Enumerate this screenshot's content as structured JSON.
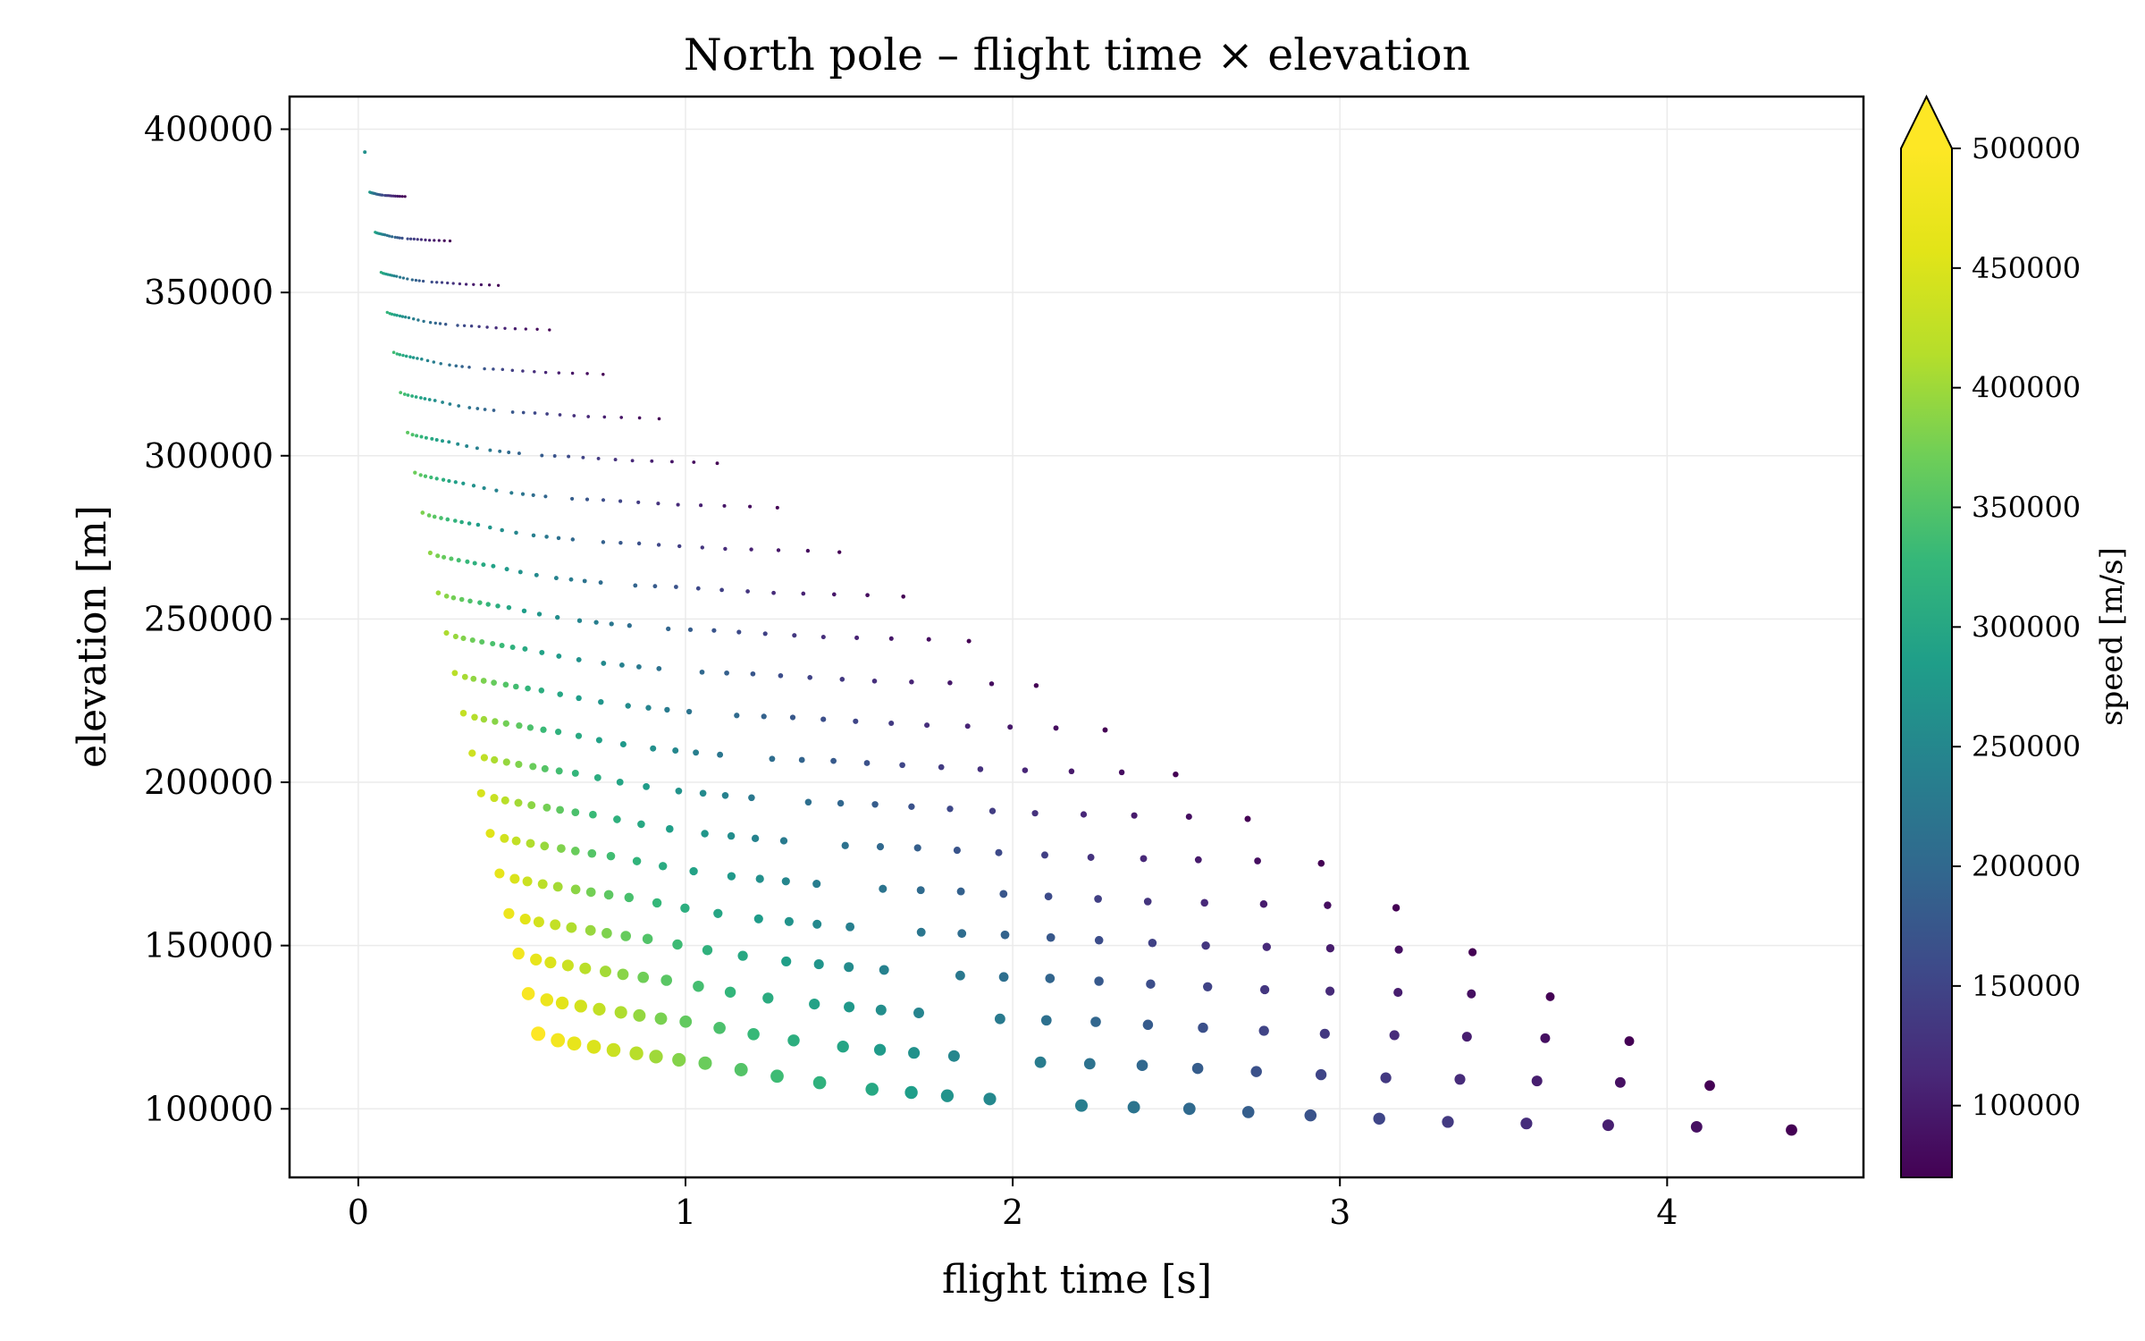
{
  "chart_data": {
    "type": "scatter",
    "title": "North pole – flight time × elevation",
    "xlabel": "flight time [s]",
    "ylabel": "elevation [m]",
    "xlim": [
      -0.21,
      4.6
    ],
    "ylim": [
      79000,
      410000
    ],
    "xticks": [
      0,
      1,
      2,
      3,
      4
    ],
    "yticks": [
      100000,
      150000,
      200000,
      250000,
      300000,
      350000,
      400000
    ],
    "x_tick_labels": [
      "0",
      "1",
      "2",
      "3",
      "4"
    ],
    "y_tick_labels": [
      "100000",
      "150000",
      "200000",
      "250000",
      "300000",
      "350000",
      "400000"
    ],
    "grid": true,
    "colorbar": {
      "label": "speed [m/s]",
      "min": 70000,
      "max": 500000,
      "extend": "max",
      "colormap": "viridis",
      "ticks": [
        100000,
        150000,
        200000,
        250000,
        300000,
        350000,
        400000,
        450000,
        500000
      ],
      "tick_labels": [
        "100000",
        "150000",
        "200000",
        "250000",
        "300000",
        "350000",
        "400000",
        "450000",
        "500000"
      ]
    },
    "apex": {
      "x": 0.02,
      "y": 393000
    },
    "trajectory_ends": [
      {
        "x": 0.55,
        "y": 123000
      },
      {
        "x": 0.61,
        "y": 121000
      },
      {
        "x": 0.66,
        "y": 120000
      },
      {
        "x": 0.72,
        "y": 119000
      },
      {
        "x": 0.78,
        "y": 118000
      },
      {
        "x": 0.85,
        "y": 117000
      },
      {
        "x": 0.91,
        "y": 116000
      },
      {
        "x": 0.98,
        "y": 115000
      },
      {
        "x": 1.06,
        "y": 114000
      },
      {
        "x": 1.17,
        "y": 112000
      },
      {
        "x": 1.28,
        "y": 110000
      },
      {
        "x": 1.41,
        "y": 108000
      },
      {
        "x": 1.57,
        "y": 106000
      },
      {
        "x": 1.69,
        "y": 105000
      },
      {
        "x": 1.8,
        "y": 104000
      },
      {
        "x": 1.93,
        "y": 103000
      },
      {
        "x": 2.21,
        "y": 101000
      },
      {
        "x": 2.37,
        "y": 100500
      },
      {
        "x": 2.54,
        "y": 100000
      },
      {
        "x": 2.72,
        "y": 99000
      },
      {
        "x": 2.91,
        "y": 98000
      },
      {
        "x": 3.12,
        "y": 97000
      },
      {
        "x": 3.33,
        "y": 96000
      },
      {
        "x": 3.57,
        "y": 95500
      },
      {
        "x": 3.82,
        "y": 95000
      },
      {
        "x": 4.09,
        "y": 94500
      },
      {
        "x": 4.38,
        "y": 93500
      }
    ],
    "points_per_trajectory": 22,
    "series": [
      {
        "marker_color_by": "speed",
        "speed_at_apex": 260000,
        "speed_range_by_trajectory": [
          {
            "slowest_start": 500000,
            "slowest_end": 500000
          },
          {
            "fastest_start": 70000,
            "fastest_end": 90000
          }
        ]
      }
    ]
  }
}
